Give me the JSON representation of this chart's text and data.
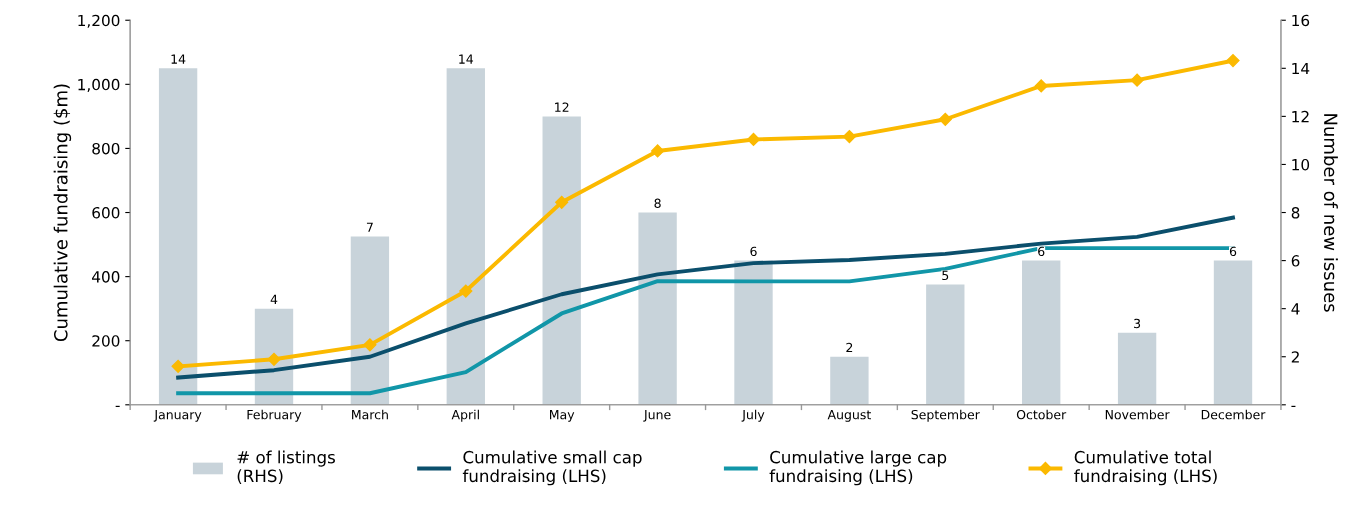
{
  "chart_data": {
    "type": "bar",
    "ylabel": "Cumulative fundraising ($m)",
    "y2label": "Number of new issues",
    "categories": [
      "January",
      "February",
      "March",
      "April",
      "May",
      "June",
      "July",
      "August",
      "September",
      "October",
      "November",
      "December"
    ],
    "series": [
      {
        "name": "# of listings (RHS)",
        "axis": "y2",
        "color": "#c8d3da",
        "values": [
          14,
          4,
          7,
          14,
          12,
          8,
          6,
          2,
          5,
          6,
          3,
          6
        ],
        "data_labels": true
      },
      {
        "name": "Cumulative small cap fundraising (LHS)",
        "type": "line",
        "axis": "y",
        "color": "#0b4f6c",
        "marker": "none",
        "values": [
          85,
          108,
          150,
          254,
          345,
          407,
          442,
          452,
          471,
          503,
          524,
          584
        ]
      },
      {
        "name": "Cumulative large cap fundraising (LHS)",
        "type": "line",
        "axis": "y",
        "color": "#1196a8",
        "marker": "none",
        "values": [
          36,
          36,
          36,
          102,
          285,
          386,
          385,
          385,
          424,
          489,
          489,
          489
        ]
      },
      {
        "name": "Cumulative total fundraising (LHS)",
        "type": "line",
        "axis": "y",
        "color": "#fbb900",
        "marker": "diamond",
        "values": [
          120,
          142,
          187,
          355,
          632,
          792,
          828,
          837,
          891,
          995,
          1013,
          1074
        ]
      }
    ],
    "ylim": [
      0,
      1200
    ],
    "yticks": [
      {
        "value": 0,
        "label": "-"
      },
      200,
      400,
      600,
      800,
      {
        "value": 1000,
        "label": "1,000"
      },
      {
        "value": 1200,
        "label": "1,200"
      }
    ],
    "y2lim": [
      0,
      16
    ],
    "y2ticks": [
      {
        "value": 0,
        "label": "-"
      },
      2,
      4,
      6,
      8,
      10,
      12,
      14,
      16
    ],
    "grid": false,
    "legend": "bottom"
  }
}
